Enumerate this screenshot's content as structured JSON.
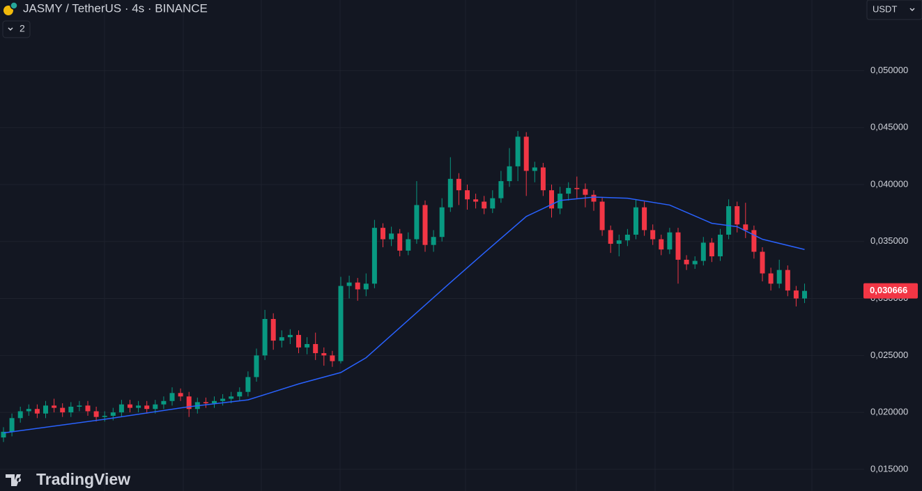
{
  "header": {
    "title": "JASMY / TetherUS · 4s · BINANCE",
    "indicator_count": "2",
    "currency": "USDT",
    "brand": "TradingView"
  },
  "chart_data": {
    "type": "candlestick",
    "colors": {
      "up": "#089981",
      "down": "#f23645",
      "ma": "#2962ff"
    },
    "ylim": [
      0.0131,
      0.0562
    ],
    "yticks": [
      {
        "value": 0.015,
        "label": "0,015000"
      },
      {
        "value": 0.02,
        "label": "0,020000"
      },
      {
        "value": 0.025,
        "label": "0,025000"
      },
      {
        "value": 0.03,
        "label": "0,030000"
      },
      {
        "value": 0.035,
        "label": "0,035000"
      },
      {
        "value": 0.04,
        "label": "0,040000"
      },
      {
        "value": 0.045,
        "label": "0,045000"
      },
      {
        "value": 0.05,
        "label": "0,050000"
      }
    ],
    "grid": true,
    "last_price": {
      "value": 0.030666,
      "label": "0,030666"
    },
    "open": [
      0.0178,
      0.0183,
      0.0195,
      0.0201,
      0.0203,
      0.0199,
      0.0206,
      0.0204,
      0.02,
      0.0205,
      0.0206,
      0.0201,
      0.0196,
      0.0197,
      0.02,
      0.0207,
      0.0204,
      0.0206,
      0.0203,
      0.0207,
      0.021,
      0.0217,
      0.0214,
      0.0203,
      0.0209,
      0.0208,
      0.021,
      0.0212,
      0.0214,
      0.0218,
      0.0231,
      0.025,
      0.0282,
      0.0263,
      0.0266,
      0.0268,
      0.0257,
      0.026,
      0.0252,
      0.025,
      0.0245,
      0.0311,
      0.0314,
      0.0308,
      0.0313,
      0.0362,
      0.0352,
      0.0357,
      0.0342,
      0.0352,
      0.0382,
      0.0347,
      0.0354,
      0.038,
      0.0405,
      0.0395,
      0.0387,
      0.0385,
      0.0379,
      0.0388,
      0.0403,
      0.0416,
      0.0442,
      0.0412,
      0.0415,
      0.0395,
      0.0379,
      0.0392,
      0.0397,
      0.0396,
      0.0391,
      0.0385,
      0.036,
      0.0348,
      0.0351,
      0.0356,
      0.038,
      0.036,
      0.0352,
      0.0343,
      0.0358,
      0.0334,
      0.033,
      0.0333,
      0.0349,
      0.0337,
      0.0356,
      0.0381,
      0.0365,
      0.036,
      0.0341,
      0.0322,
      0.0313,
      0.0325,
      0.0307,
      0.03
    ],
    "high": [
      0.0187,
      0.0199,
      0.0205,
      0.0207,
      0.0207,
      0.021,
      0.0212,
      0.0208,
      0.0209,
      0.021,
      0.021,
      0.0205,
      0.0201,
      0.0204,
      0.0211,
      0.0211,
      0.021,
      0.021,
      0.0211,
      0.0214,
      0.0222,
      0.0221,
      0.0218,
      0.0213,
      0.0213,
      0.0214,
      0.0216,
      0.0218,
      0.0222,
      0.0236,
      0.0256,
      0.029,
      0.0287,
      0.0272,
      0.0273,
      0.0272,
      0.0266,
      0.027,
      0.0257,
      0.0254,
      0.0319,
      0.032,
      0.0318,
      0.0322,
      0.0369,
      0.0366,
      0.0363,
      0.0361,
      0.0358,
      0.0403,
      0.0386,
      0.036,
      0.0388,
      0.0424,
      0.041,
      0.04,
      0.0392,
      0.039,
      0.0395,
      0.0412,
      0.0432,
      0.0447,
      0.0446,
      0.042,
      0.0419,
      0.04,
      0.0398,
      0.0402,
      0.0407,
      0.0401,
      0.0395,
      0.0389,
      0.0364,
      0.0356,
      0.0361,
      0.0387,
      0.0385,
      0.0365,
      0.0356,
      0.0362,
      0.0362,
      0.0338,
      0.0337,
      0.0354,
      0.0353,
      0.0361,
      0.0387,
      0.0385,
      0.0384,
      0.0364,
      0.0345,
      0.0327,
      0.0334,
      0.0329,
      0.0311,
      0.0313
    ],
    "low": [
      0.0174,
      0.0179,
      0.0191,
      0.0197,
      0.0195,
      0.0195,
      0.02,
      0.0196,
      0.0196,
      0.0201,
      0.0197,
      0.0192,
      0.0192,
      0.0193,
      0.0196,
      0.02,
      0.02,
      0.0199,
      0.0199,
      0.0203,
      0.0206,
      0.021,
      0.0196,
      0.0199,
      0.0204,
      0.0204,
      0.0206,
      0.0208,
      0.021,
      0.0214,
      0.0227,
      0.0246,
      0.0255,
      0.0257,
      0.026,
      0.0252,
      0.0251,
      0.0246,
      0.0241,
      0.024,
      0.0243,
      0.03,
      0.0298,
      0.0302,
      0.0309,
      0.0345,
      0.0346,
      0.0337,
      0.0338,
      0.0348,
      0.0341,
      0.0341,
      0.035,
      0.0376,
      0.0382,
      0.0378,
      0.0379,
      0.0374,
      0.0375,
      0.0384,
      0.0398,
      0.0403,
      0.039,
      0.0402,
      0.039,
      0.0371,
      0.0374,
      0.0386,
      0.0388,
      0.038,
      0.0377,
      0.0355,
      0.034,
      0.0337,
      0.0346,
      0.0352,
      0.0355,
      0.0347,
      0.0338,
      0.0339,
      0.0313,
      0.0325,
      0.0326,
      0.0329,
      0.0332,
      0.0333,
      0.0352,
      0.0358,
      0.0353,
      0.0335,
      0.0315,
      0.0307,
      0.0309,
      0.0302,
      0.0293,
      0.0296
    ],
    "close": [
      0.0183,
      0.0195,
      0.0201,
      0.0203,
      0.0199,
      0.0206,
      0.0204,
      0.02,
      0.0205,
      0.0206,
      0.0201,
      0.0196,
      0.0197,
      0.02,
      0.0207,
      0.0204,
      0.0206,
      0.0203,
      0.0207,
      0.021,
      0.0217,
      0.0214,
      0.0203,
      0.0209,
      0.0208,
      0.021,
      0.0212,
      0.0214,
      0.0218,
      0.0231,
      0.025,
      0.0282,
      0.0263,
      0.0266,
      0.0268,
      0.0257,
      0.026,
      0.0252,
      0.025,
      0.0245,
      0.0311,
      0.0314,
      0.0308,
      0.0313,
      0.0362,
      0.0352,
      0.0357,
      0.0342,
      0.0352,
      0.0382,
      0.0347,
      0.0354,
      0.038,
      0.0405,
      0.0395,
      0.0387,
      0.0385,
      0.0379,
      0.0388,
      0.0403,
      0.0416,
      0.0442,
      0.0412,
      0.0415,
      0.0395,
      0.0379,
      0.0392,
      0.0397,
      0.0396,
      0.0391,
      0.0385,
      0.036,
      0.0348,
      0.0351,
      0.0356,
      0.038,
      0.036,
      0.0352,
      0.0343,
      0.0358,
      0.0334,
      0.033,
      0.0333,
      0.0349,
      0.0337,
      0.0356,
      0.0381,
      0.0365,
      0.036,
      0.0341,
      0.0322,
      0.0313,
      0.0325,
      0.0307,
      0.03,
      0.030666
    ],
    "ma": {
      "x": [
        0,
        12,
        22,
        29,
        35,
        40,
        43,
        48,
        53,
        57,
        62,
        66,
        70,
        74,
        79,
        84,
        87,
        90,
        95
      ],
      "values": [
        0.0182,
        0.0194,
        0.0205,
        0.0211,
        0.0225,
        0.0235,
        0.0248,
        0.0281,
        0.0314,
        0.034,
        0.0372,
        0.0386,
        0.0389,
        0.0388,
        0.0382,
        0.0366,
        0.0363,
        0.0352,
        0.0343
      ]
    }
  }
}
